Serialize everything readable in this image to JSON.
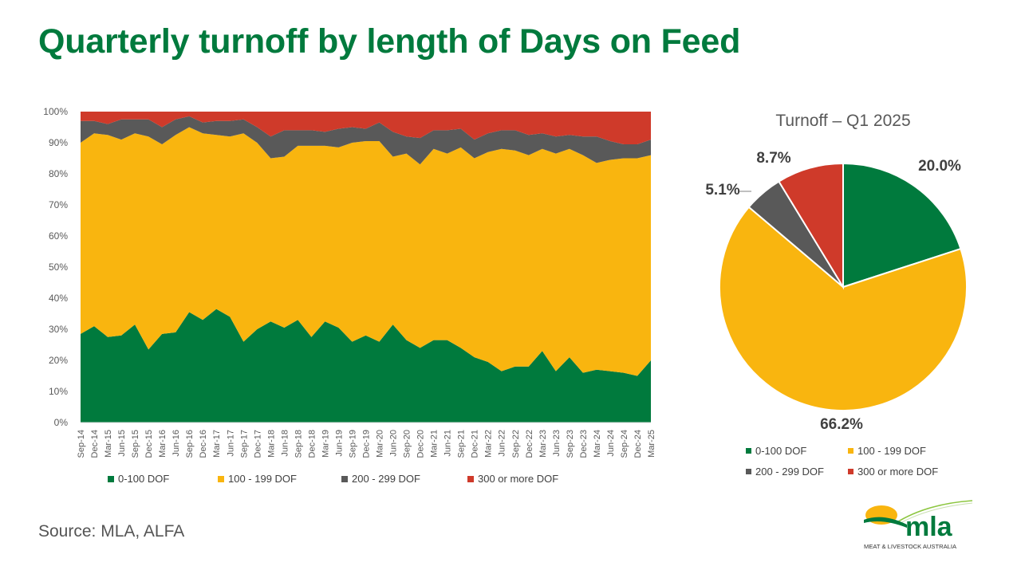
{
  "title": "Quarterly turnoff by length of Days on Feed",
  "source": "Source: MLA, ALFA",
  "colors": {
    "green": "#007a3d",
    "gold": "#f9b50f",
    "grey": "#595959",
    "red": "#cf3a2a",
    "title": "#007a3d"
  },
  "logo": {
    "text": "mla",
    "subtext": "MEAT & LIVESTOCK AUSTRALIA"
  },
  "chart_data": [
    {
      "type": "area",
      "stacked": "percent",
      "title": "",
      "xlabel": "",
      "ylabel": "",
      "ylim": [
        0,
        100
      ],
      "yticks": [
        "0%",
        "10%",
        "20%",
        "30%",
        "40%",
        "50%",
        "60%",
        "70%",
        "80%",
        "90%",
        "100%"
      ],
      "grid": false,
      "legend": "bottom",
      "categories": [
        "Sep-14",
        "Dec-14",
        "Mar-15",
        "Jun-15",
        "Sep-15",
        "Dec-15",
        "Mar-16",
        "Jun-16",
        "Sep-16",
        "Dec-16",
        "Mar-17",
        "Jun-17",
        "Sep-17",
        "Dec-17",
        "Mar-18",
        "Jun-18",
        "Sep-18",
        "Dec-18",
        "Mar-19",
        "Jun-19",
        "Sep-19",
        "Dec-19",
        "Mar-20",
        "Jun-20",
        "Sep-20",
        "Dec-20",
        "Mar-21",
        "Jun-21",
        "Sep-21",
        "Dec-21",
        "Mar-22",
        "Jun-22",
        "Sep-22",
        "Dec-22",
        "Mar-23",
        "Jun-23",
        "Sep-23",
        "Dec-23",
        "Mar-24",
        "Jun-24",
        "Sep-24",
        "Dec-24",
        "Mar-25"
      ],
      "series": [
        {
          "name": "0-100 DOF",
          "color": "#007a3d",
          "values": [
            28.5,
            31,
            27.5,
            28,
            31.5,
            23.5,
            28.5,
            29,
            35.5,
            33,
            36.5,
            34,
            26,
            30,
            32.5,
            30.5,
            33,
            27.5,
            32.5,
            30.5,
            26,
            28,
            26,
            31.5,
            26.5,
            24,
            26.5,
            26.5,
            24,
            21,
            19.5,
            16.5,
            18,
            18,
            23,
            16.5,
            21,
            16,
            17,
            16.5,
            16,
            15,
            20
          ]
        },
        {
          "name": "100 - 199 DOF",
          "color": "#f9b50f",
          "values": [
            61.5,
            62,
            65,
            63,
            61.5,
            68.5,
            61,
            63.5,
            59.5,
            60,
            56,
            58,
            67,
            60,
            52.5,
            55,
            56,
            61.5,
            56.5,
            58,
            64,
            62.5,
            64.5,
            54,
            60,
            59,
            61.5,
            60,
            64.5,
            64,
            67.5,
            71.5,
            69.5,
            68,
            65,
            70,
            67,
            70,
            66.5,
            68,
            69,
            70,
            66
          ]
        },
        {
          "name": "200 - 299 DOF",
          "color": "#595959",
          "values": [
            7,
            4,
            3.5,
            6.5,
            4.5,
            5.5,
            5.5,
            5,
            3.5,
            3.5,
            4.5,
            5,
            4.5,
            5,
            7,
            8.5,
            5,
            5,
            4.5,
            6,
            5,
            4,
            6,
            8,
            5.5,
            8.5,
            6,
            7.5,
            6,
            6,
            6,
            6,
            6.5,
            6.5,
            5,
            5.5,
            4.5,
            6,
            8.5,
            6,
            4.5,
            4.5,
            5
          ]
        },
        {
          "name": "300 or more DOF",
          "color": "#cf3a2a",
          "values": [
            3,
            3,
            4,
            2.5,
            2.5,
            2.5,
            5,
            2.5,
            1.5,
            3.5,
            3,
            3,
            2.5,
            5,
            8,
            6,
            6,
            6,
            6.5,
            5.5,
            5,
            5.5,
            3.5,
            6.5,
            8,
            8.5,
            6,
            6,
            5.5,
            9,
            7,
            6,
            6,
            7.5,
            7,
            8,
            7.5,
            8,
            8,
            9.5,
            10.5,
            10.5,
            9
          ]
        }
      ]
    },
    {
      "type": "pie",
      "title": "Turnoff – Q1 2025",
      "legend": "bottom",
      "slices": [
        {
          "label": "0-100 DOF",
          "value": 20.0,
          "display": "20.0%",
          "color": "#007a3d"
        },
        {
          "label": "100 - 199 DOF",
          "value": 66.2,
          "display": "66.2%",
          "color": "#f9b50f"
        },
        {
          "label": "200 - 299 DOF",
          "value": 5.1,
          "display": "5.1%",
          "color": "#595959"
        },
        {
          "label": "300 or more DOF",
          "value": 8.7,
          "display": "8.7%",
          "color": "#cf3a2a"
        }
      ]
    }
  ]
}
